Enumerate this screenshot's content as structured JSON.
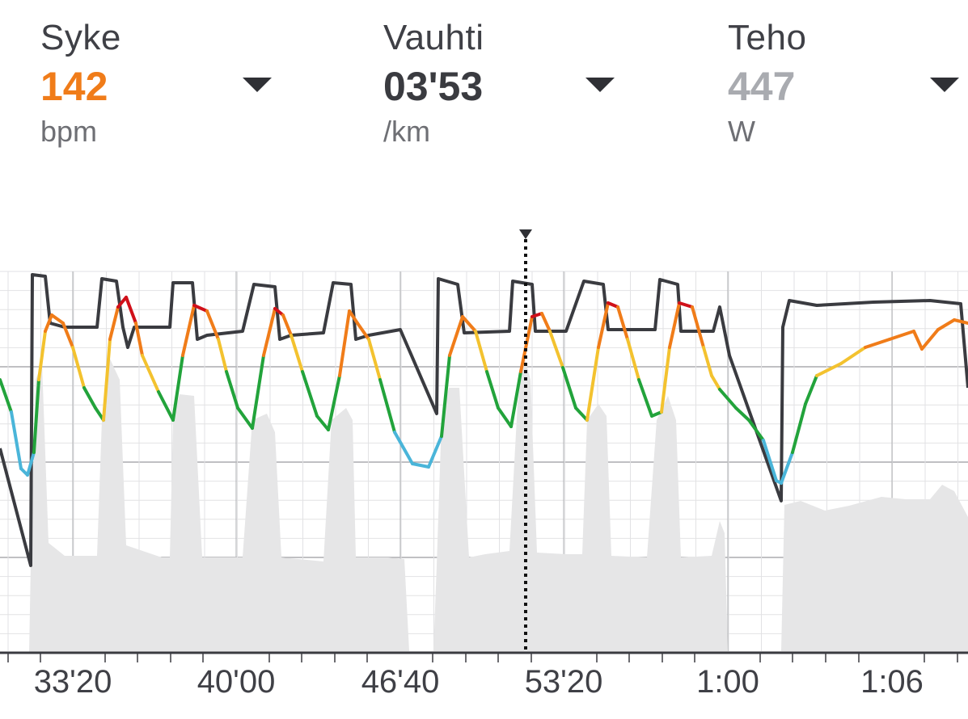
{
  "metrics": [
    {
      "label": "Syke",
      "value": "142",
      "unit": "bpm",
      "color": "#f07c19"
    },
    {
      "label": "Vauhti",
      "value": "03'53",
      "unit": "/km",
      "color": "#3a3b40"
    },
    {
      "label": "Teho",
      "value": "447",
      "unit": "W",
      "color": "#a9abb0"
    }
  ],
  "chart_data": {
    "type": "line",
    "x_tick_labels": [
      "33'20",
      "40'00",
      "46'40",
      "53'20",
      "1:00",
      "1:06"
    ],
    "cursor_position_label": "53'20",
    "series": [
      {
        "name": "Syke",
        "color_zones": [
          "#4ab5d9",
          "#22a33b",
          "#f3c22f",
          "#f07c19",
          "#d0101a"
        ]
      },
      {
        "name": "Vauhti",
        "color": "#3a3b40"
      },
      {
        "name": "Teho",
        "color": "#e6e6e7"
      }
    ],
    "grid": true
  }
}
